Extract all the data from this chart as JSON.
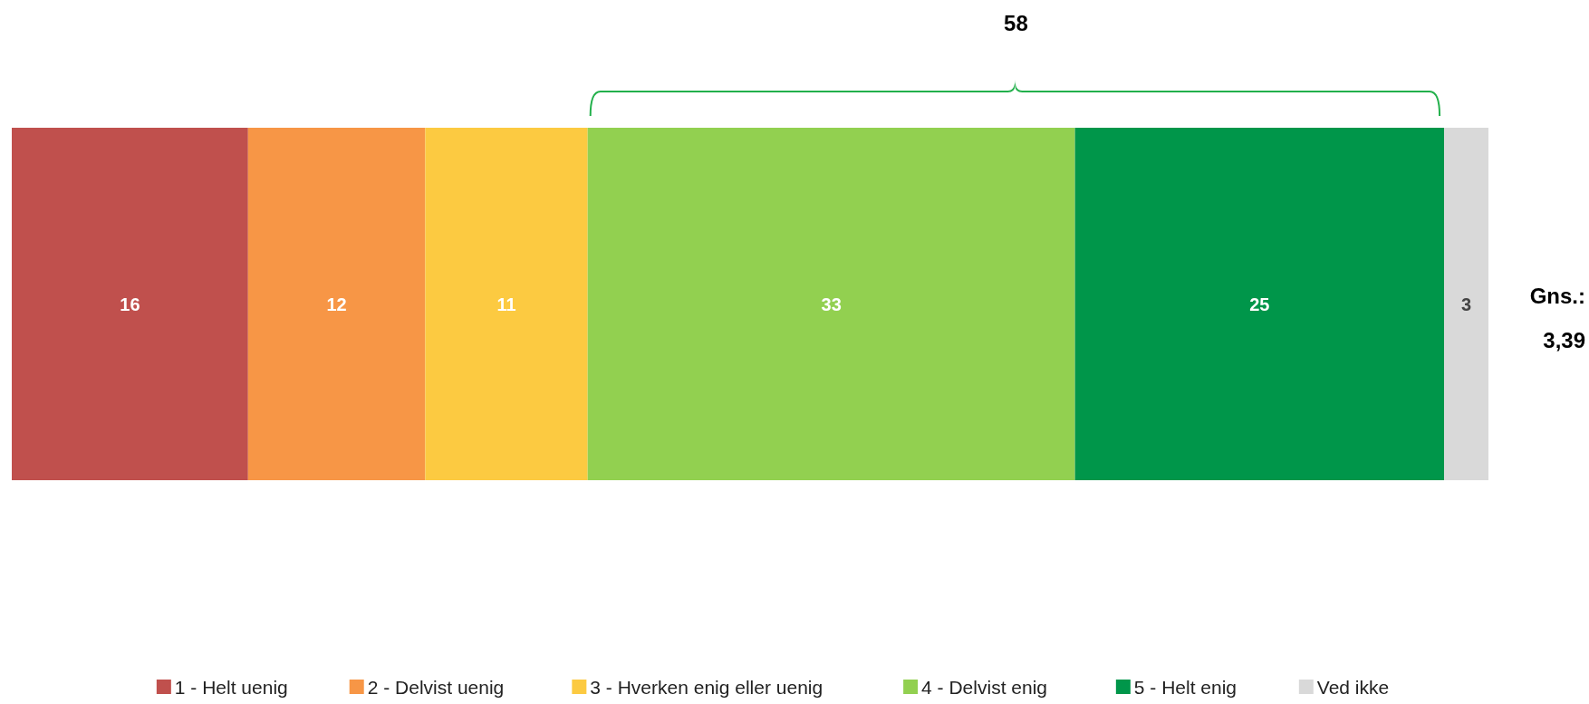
{
  "chart_data": {
    "type": "bar",
    "orientation": "horizontal",
    "stacked": true,
    "categories": [
      null
    ],
    "data_labels": true,
    "legend": "bottom",
    "series": [
      {
        "name": "1 - Helt uenig",
        "color": "#c0504d",
        "values": [
          16
        ]
      },
      {
        "name": "2 - Delvist uenig",
        "color": "#f79646",
        "values": [
          12
        ]
      },
      {
        "name": "3 - Hverken enig eller uenig",
        "color": "#fcca41",
        "values": [
          11
        ]
      },
      {
        "name": "4 - Delvist enig",
        "color": "#92d050",
        "values": [
          33
        ]
      },
      {
        "name": "5 - Helt enig",
        "color": "#00964a",
        "values": [
          25
        ]
      },
      {
        "name": "Ved ikke",
        "color": "#d9d9d9",
        "values": [
          3
        ]
      }
    ],
    "annotations": [
      "58",
      "Gns.:",
      "3,39"
    ]
  }
}
